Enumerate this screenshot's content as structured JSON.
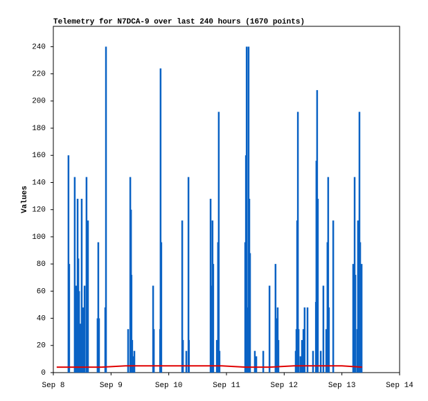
{
  "chart_data": {
    "type": "stem",
    "title": "Telemetry for N7DCA-9 over last 240 hours (1670 points)",
    "y_label": "Values",
    "xlim": [
      0,
      144
    ],
    "xticks": [
      {
        "value": 0,
        "label": "Sep 8"
      },
      {
        "value": 24,
        "label": "Sep 9"
      },
      {
        "value": 48,
        "label": "Sep 10"
      },
      {
        "value": 72,
        "label": "Sep 11"
      },
      {
        "value": 96,
        "label": "Sep 12"
      },
      {
        "value": 120,
        "label": "Sep 13"
      },
      {
        "value": 144,
        "label": "Sep 14"
      }
    ],
    "ylim": [
      0,
      255
    ],
    "yticks": [
      0,
      20,
      40,
      60,
      80,
      100,
      120,
      140,
      160,
      180,
      200,
      220,
      240
    ],
    "series": [
      {
        "name": "spikes",
        "color": "#0a62c4",
        "style": "stem",
        "x": [
          6.3,
          6.6,
          8.9,
          9.5,
          10.1,
          10.4,
          10.7,
          11.2,
          11.8,
          12.4,
          13.0,
          13.8,
          14.4,
          18.4,
          18.7,
          19.0,
          21.6,
          21.9,
          31.1,
          32.0,
          32.3,
          32.5,
          32.8,
          33.4,
          33.7,
          41.5,
          41.8,
          44.4,
          44.6,
          44.9,
          53.6,
          53.9,
          55.3,
          56.2,
          56.4,
          65.4,
          66.0,
          66.2,
          66.5,
          68.0,
          68.5,
          68.8,
          69.1,
          79.8,
          80.1,
          80.4,
          80.6,
          81.2,
          81.5,
          81.8,
          83.8,
          84.4,
          87.3,
          89.9,
          92.4,
          93.0,
          93.3,
          93.6,
          100.8,
          101.1,
          101.4,
          101.7,
          102.0,
          102.8,
          103.4,
          104.0,
          104.5,
          105.7,
          108.0,
          109.2,
          109.4,
          109.7,
          110.0,
          111.2,
          112.3,
          113.5,
          114.0,
          114.3,
          114.6,
          116.4,
          124.7,
          125.3,
          125.6,
          126.4,
          126.7,
          127.3,
          127.6,
          128.2
        ],
        "values": [
          160,
          80,
          144,
          64,
          128,
          84,
          60,
          36,
          128,
          48,
          64,
          144,
          112,
          40,
          96,
          40,
          48,
          240,
          32,
          144,
          120,
          72,
          24,
          12,
          16,
          64,
          32,
          32,
          224,
          96,
          112,
          24,
          16,
          144,
          24,
          128,
          64,
          112,
          80,
          24,
          96,
          192,
          16,
          96,
          160,
          240,
          48,
          240,
          128,
          88,
          16,
          12,
          16,
          64,
          80,
          40,
          48,
          24,
          16,
          32,
          112,
          192,
          32,
          12,
          24,
          32,
          48,
          48,
          16,
          52,
          156,
          208,
          128,
          16,
          64,
          32,
          96,
          144,
          48,
          112,
          80,
          144,
          72,
          32,
          112,
          192,
          96,
          80
        ]
      },
      {
        "name": "baseline",
        "color": "#e00000",
        "style": "line",
        "x": [
          1.4,
          10,
          20,
          30,
          40,
          50,
          60,
          70,
          80,
          90,
          100,
          110,
          120,
          128.4
        ],
        "values": [
          4,
          4,
          4,
          5,
          5,
          5,
          5,
          5,
          4,
          4,
          5,
          5,
          5,
          4
        ]
      }
    ]
  }
}
